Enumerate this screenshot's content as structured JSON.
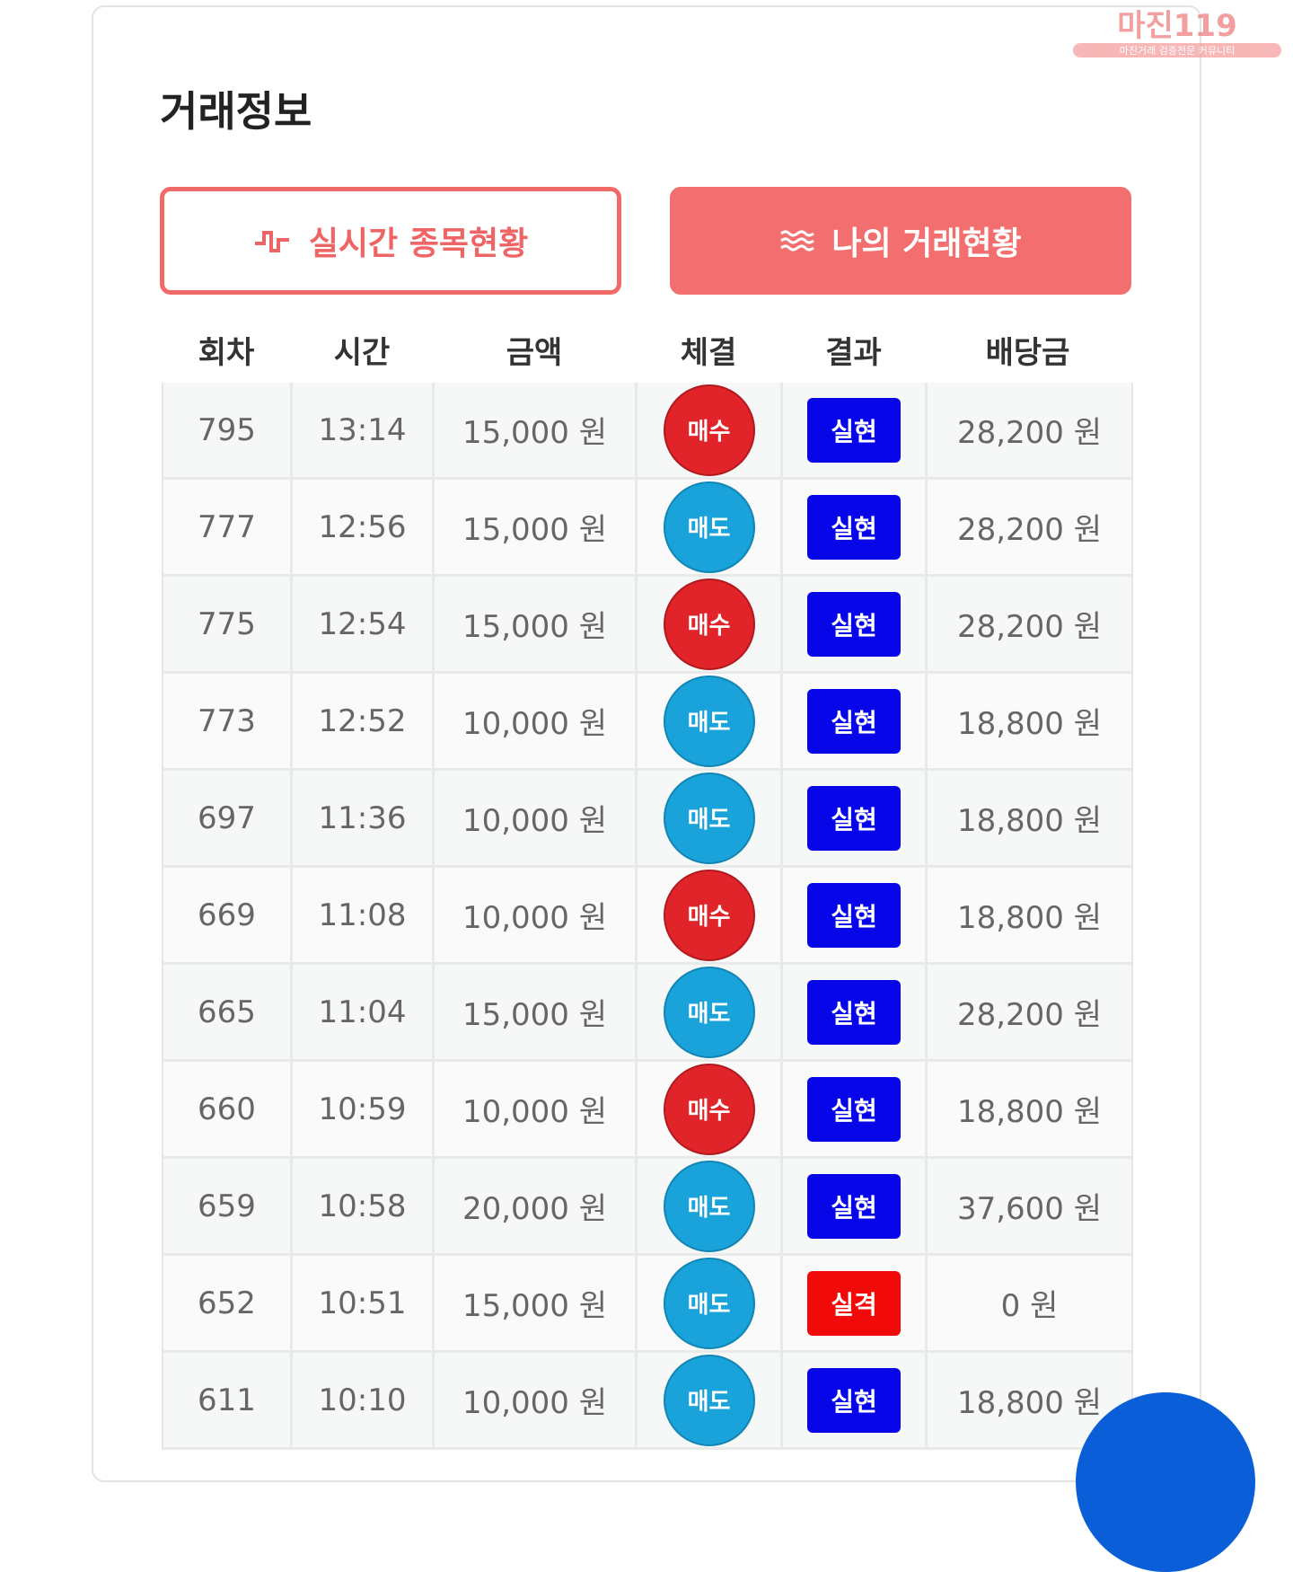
{
  "watermark": {
    "logo": "마진119",
    "tagline": "마진거래 검증전문 커뮤니티"
  },
  "header": {
    "title": "거래정보"
  },
  "tabs": [
    "실시간 종목현황",
    "나의 거래현황"
  ],
  "table": {
    "columns": [
      "회차",
      "시간",
      "금액",
      "체결",
      "결과",
      "배당금"
    ],
    "rows": [
      [
        "795",
        "13:14",
        "15,000 원",
        "매수",
        "실현",
        "28,200 원"
      ],
      [
        "777",
        "12:56",
        "15,000 원",
        "매도",
        "실현",
        "28,200 원"
      ],
      [
        "775",
        "12:54",
        "15,000 원",
        "매수",
        "실현",
        "28,200 원"
      ],
      [
        "773",
        "12:52",
        "10,000 원",
        "매도",
        "실현",
        "18,800 원"
      ],
      [
        "697",
        "11:36",
        "10,000 원",
        "매도",
        "실현",
        "18,800 원"
      ],
      [
        "669",
        "11:08",
        "10,000 원",
        "매수",
        "실현",
        "18,800 원"
      ],
      [
        "665",
        "11:04",
        "15,000 원",
        "매도",
        "실현",
        "28,200 원"
      ],
      [
        "660",
        "10:59",
        "10,000 원",
        "매수",
        "실현",
        "18,800 원"
      ],
      [
        "659",
        "10:58",
        "20,000 원",
        "매도",
        "실현",
        "37,600 원"
      ],
      [
        "652",
        "10:51",
        "15,000 원",
        "매도",
        "실격",
        "0 원"
      ],
      [
        "611",
        "10:10",
        "10,000 원",
        "매도",
        "실현",
        "18,800 원"
      ]
    ]
  }
}
